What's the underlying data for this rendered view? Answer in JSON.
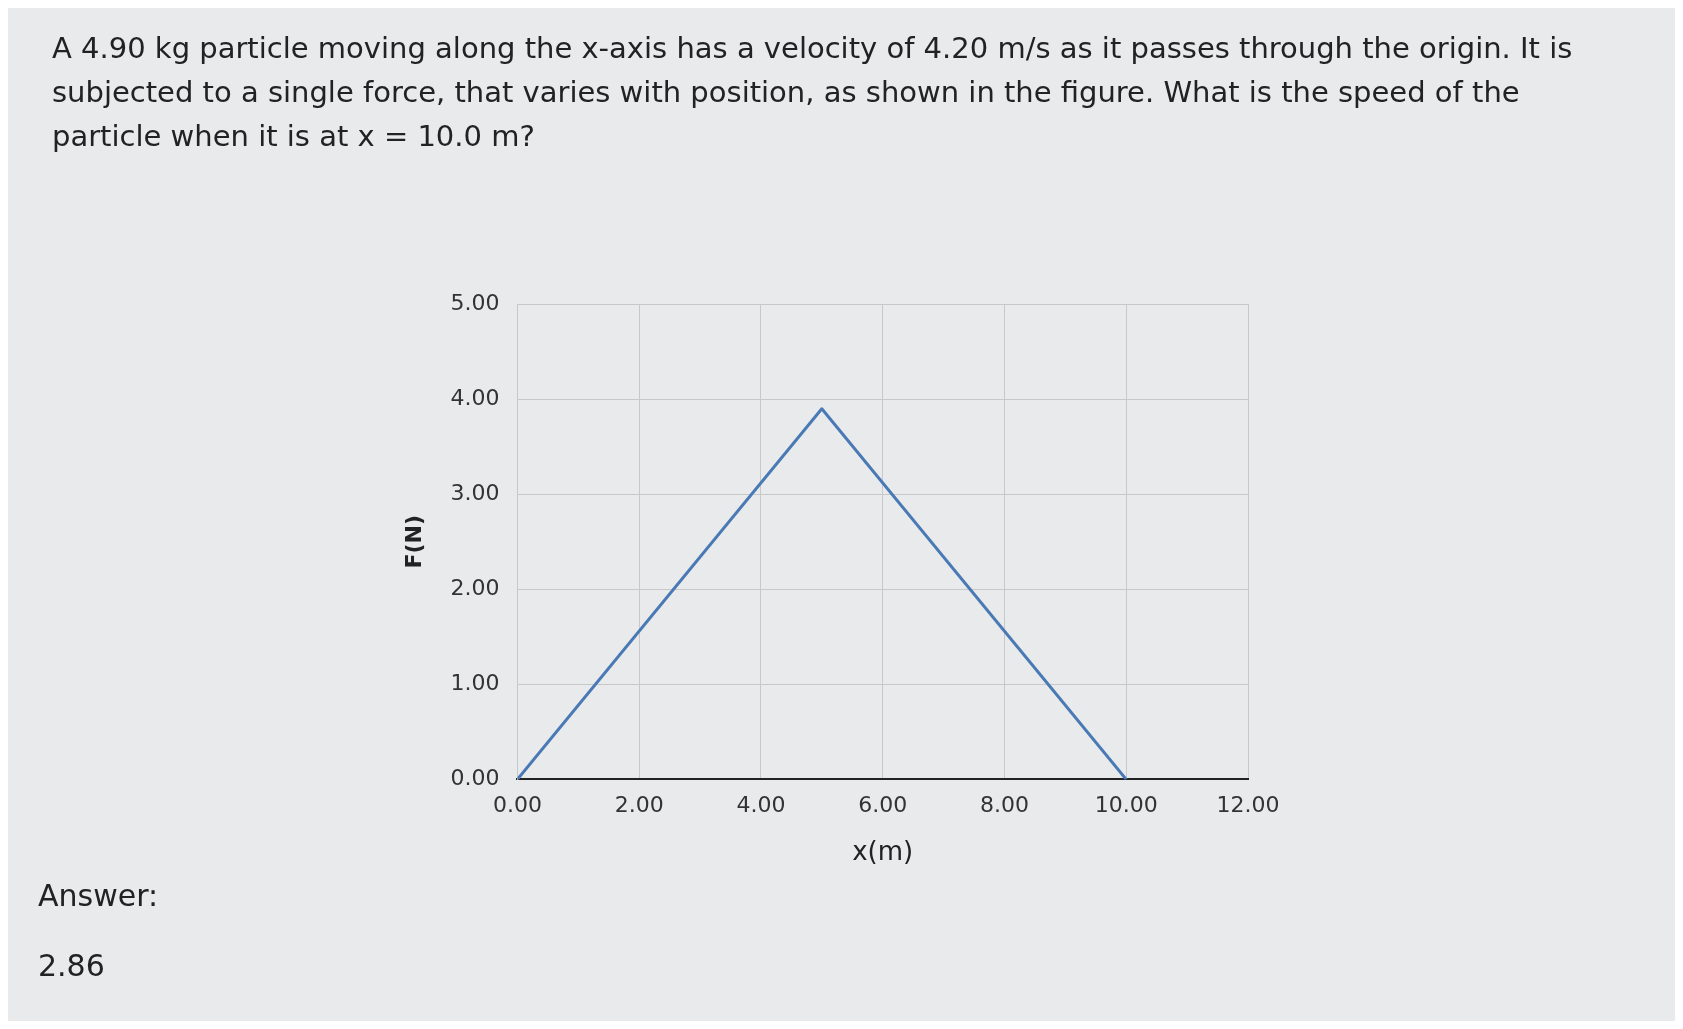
{
  "chart_data": {
    "type": "line",
    "title": "A 4.90 kg particle moving along the x-axis has a velocity of 4.20 m/s as it passes through the origin. It is subjected to a single force, that varies with position, as shown in the figure. What is the speed of the particle when it is at x = 10.0 m?",
    "xlabel": "x(m)",
    "ylabel": "F(N)",
    "x": [
      0,
      5,
      10
    ],
    "series": [
      {
        "color": "#4a7ab5",
        "values": [
          0,
          3.9,
          0
        ]
      }
    ],
    "xlim": [
      0,
      12
    ],
    "xticks": [
      {
        "value": 0,
        "label": "0.00"
      },
      {
        "value": 2,
        "label": "2.00"
      },
      {
        "value": 4,
        "label": "4.00"
      },
      {
        "value": 6,
        "label": "6.00"
      },
      {
        "value": 8,
        "label": "8.00"
      },
      {
        "value": 10,
        "label": "10.00"
      },
      {
        "value": 12,
        "label": "12.00"
      }
    ],
    "ylim": [
      0,
      5
    ],
    "yticks": [
      {
        "value": 0,
        "label": "0.00"
      },
      {
        "value": 1,
        "label": "1.00"
      },
      {
        "value": 2,
        "label": "2.00"
      },
      {
        "value": 3,
        "label": "3.00"
      },
      {
        "value": 4,
        "label": "4.00"
      },
      {
        "value": 5,
        "label": "5.00"
      }
    ],
    "grid": true,
    "legend": false,
    "marker": "none",
    "line_style": "solid",
    "annotations": [
      "Answer:",
      "2.86"
    ]
  }
}
